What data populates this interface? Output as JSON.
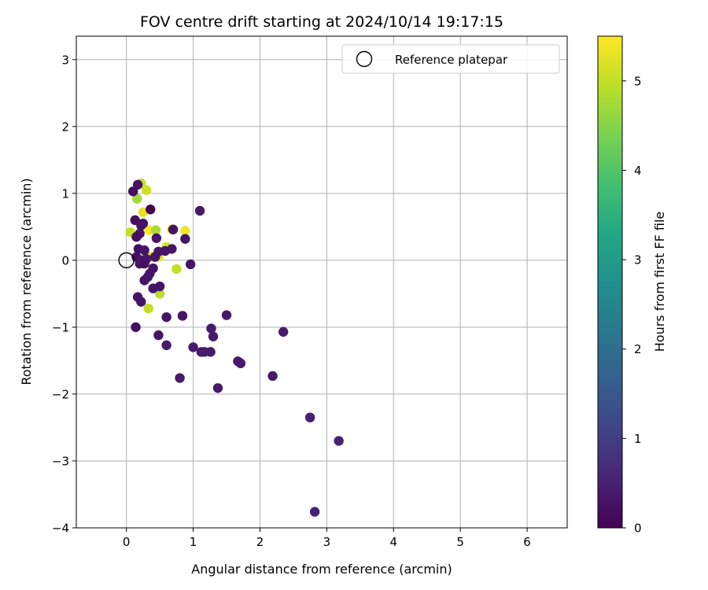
{
  "chart_data": {
    "type": "scatter",
    "title": "FOV centre drift starting at 2024/10/14 19:17:15",
    "xlabel": "Angular distance from reference (arcmin)",
    "ylabel": "Rotation from reference (arcmin)",
    "xlim": [
      -0.75,
      6.6
    ],
    "ylim": [
      -4.0,
      3.35
    ],
    "xticks": [
      "0",
      "1",
      "2",
      "3",
      "4",
      "5",
      "6"
    ],
    "yticks": [
      "−4",
      "−3",
      "−2",
      "−1",
      "0",
      "1",
      "2",
      "3"
    ],
    "grid": true,
    "legend": {
      "placement": "top-right",
      "entries": [
        "Reference platepar"
      ]
    },
    "reference_point": {
      "x": 0,
      "y": 0
    },
    "colorbar": {
      "label": "Hours from first FF file",
      "range": [
        0,
        5.5
      ],
      "ticks": [
        "0",
        "1",
        "2",
        "3",
        "4",
        "5"
      ],
      "colormap": "viridis"
    },
    "points": [
      {
        "x": 0.22,
        "y": 1.15,
        "h": 5.0
      },
      {
        "x": 0.3,
        "y": 1.05,
        "h": 5.1
      },
      {
        "x": 0.16,
        "y": 0.92,
        "h": 4.7
      },
      {
        "x": 0.25,
        "y": 0.72,
        "h": 5.3
      },
      {
        "x": 0.34,
        "y": 0.45,
        "h": 5.4
      },
      {
        "x": 0.68,
        "y": 0.46,
        "h": 5.5
      },
      {
        "x": 0.88,
        "y": 0.44,
        "h": 5.4
      },
      {
        "x": 0.44,
        "y": 0.45,
        "h": 4.8
      },
      {
        "x": 0.06,
        "y": 0.42,
        "h": 5.0
      },
      {
        "x": 0.6,
        "y": 0.2,
        "h": 5.2
      },
      {
        "x": 0.38,
        "y": 0.05,
        "h": 5.0
      },
      {
        "x": 0.75,
        "y": -0.13,
        "h": 5.0
      },
      {
        "x": 0.5,
        "y": -0.5,
        "h": 4.9
      },
      {
        "x": 0.33,
        "y": -0.72,
        "h": 5.0
      },
      {
        "x": 0.48,
        "y": 0.05,
        "h": 5.3
      },
      {
        "x": 0.3,
        "y": 0.05,
        "h": 5.2
      },
      {
        "x": 0.1,
        "y": 1.03,
        "h": 0.2
      },
      {
        "x": 0.17,
        "y": 1.13,
        "h": 0.3
      },
      {
        "x": 0.36,
        "y": 0.76,
        "h": 0.0
      },
      {
        "x": 1.1,
        "y": 0.74,
        "h": 0.4
      },
      {
        "x": 0.13,
        "y": 0.6,
        "h": 0.2
      },
      {
        "x": 0.22,
        "y": 0.52,
        "h": 0.3
      },
      {
        "x": 0.25,
        "y": 0.55,
        "h": 0.3
      },
      {
        "x": 0.7,
        "y": 0.46,
        "h": 0.3
      },
      {
        "x": 0.2,
        "y": 0.4,
        "h": 0.3
      },
      {
        "x": 0.15,
        "y": 0.35,
        "h": 0.2
      },
      {
        "x": 0.45,
        "y": 0.33,
        "h": 0.3
      },
      {
        "x": 0.88,
        "y": 0.32,
        "h": 0.3
      },
      {
        "x": 0.18,
        "y": 0.17,
        "h": 0.2
      },
      {
        "x": 0.27,
        "y": 0.15,
        "h": 0.3
      },
      {
        "x": 0.48,
        "y": 0.13,
        "h": 0.3
      },
      {
        "x": 0.58,
        "y": 0.14,
        "h": 0.3
      },
      {
        "x": 0.68,
        "y": 0.17,
        "h": 0.3
      },
      {
        "x": 0.15,
        "y": 0.05,
        "h": 0.2
      },
      {
        "x": 0.22,
        "y": 0.0,
        "h": 0.3
      },
      {
        "x": 0.3,
        "y": 0.02,
        "h": 0.3
      },
      {
        "x": 0.43,
        "y": 0.05,
        "h": 0.3
      },
      {
        "x": 0.2,
        "y": -0.05,
        "h": 0.3
      },
      {
        "x": 0.27,
        "y": -0.05,
        "h": 0.2
      },
      {
        "x": 0.96,
        "y": -0.06,
        "h": 0.3
      },
      {
        "x": 0.4,
        "y": -0.12,
        "h": 0.3
      },
      {
        "x": 0.35,
        "y": -0.2,
        "h": 0.3
      },
      {
        "x": 0.32,
        "y": -0.25,
        "h": 0.3
      },
      {
        "x": 0.27,
        "y": -0.3,
        "h": 0.3
      },
      {
        "x": 0.5,
        "y": -0.39,
        "h": 0.3
      },
      {
        "x": 0.4,
        "y": -0.42,
        "h": 0.3
      },
      {
        "x": 0.17,
        "y": -0.55,
        "h": 0.3
      },
      {
        "x": 0.22,
        "y": -0.62,
        "h": 0.3
      },
      {
        "x": 0.6,
        "y": -0.85,
        "h": 0.3
      },
      {
        "x": 0.84,
        "y": -0.83,
        "h": 0.3
      },
      {
        "x": 1.5,
        "y": -0.82,
        "h": 0.4
      },
      {
        "x": 0.14,
        "y": -1.0,
        "h": 0.2
      },
      {
        "x": 1.27,
        "y": -1.02,
        "h": 0.4
      },
      {
        "x": 2.35,
        "y": -1.07,
        "h": 0.4
      },
      {
        "x": 0.48,
        "y": -1.12,
        "h": 0.3
      },
      {
        "x": 1.3,
        "y": -1.14,
        "h": 0.4
      },
      {
        "x": 0.6,
        "y": -1.27,
        "h": 0.4
      },
      {
        "x": 1.0,
        "y": -1.3,
        "h": 0.4
      },
      {
        "x": 1.12,
        "y": -1.37,
        "h": 0.4
      },
      {
        "x": 1.17,
        "y": -1.37,
        "h": 0.4
      },
      {
        "x": 1.26,
        "y": -1.37,
        "h": 0.4
      },
      {
        "x": 1.67,
        "y": -1.51,
        "h": 0.4
      },
      {
        "x": 1.71,
        "y": -1.54,
        "h": 0.4
      },
      {
        "x": 2.19,
        "y": -1.73,
        "h": 0.4
      },
      {
        "x": 0.8,
        "y": -1.76,
        "h": 0.4
      },
      {
        "x": 1.37,
        "y": -1.91,
        "h": 0.4
      },
      {
        "x": 2.75,
        "y": -2.35,
        "h": 0.5
      },
      {
        "x": 3.18,
        "y": -2.7,
        "h": 0.5
      },
      {
        "x": 2.82,
        "y": -3.76,
        "h": 0.5
      }
    ]
  }
}
